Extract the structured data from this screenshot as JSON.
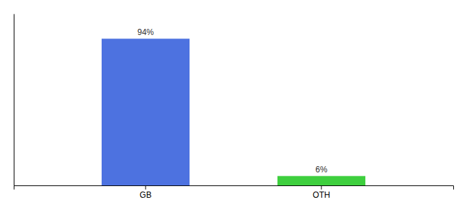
{
  "chart_data": {
    "type": "bar",
    "categories": [
      "GB",
      "OTH"
    ],
    "values": [
      94,
      6
    ],
    "value_labels": [
      "94%",
      "6%"
    ],
    "colors": [
      "#4d72e0",
      "#3ecf3e"
    ],
    "ylim": [
      0,
      110
    ],
    "grid": false,
    "data_labels": true,
    "tick_labels": "x"
  }
}
